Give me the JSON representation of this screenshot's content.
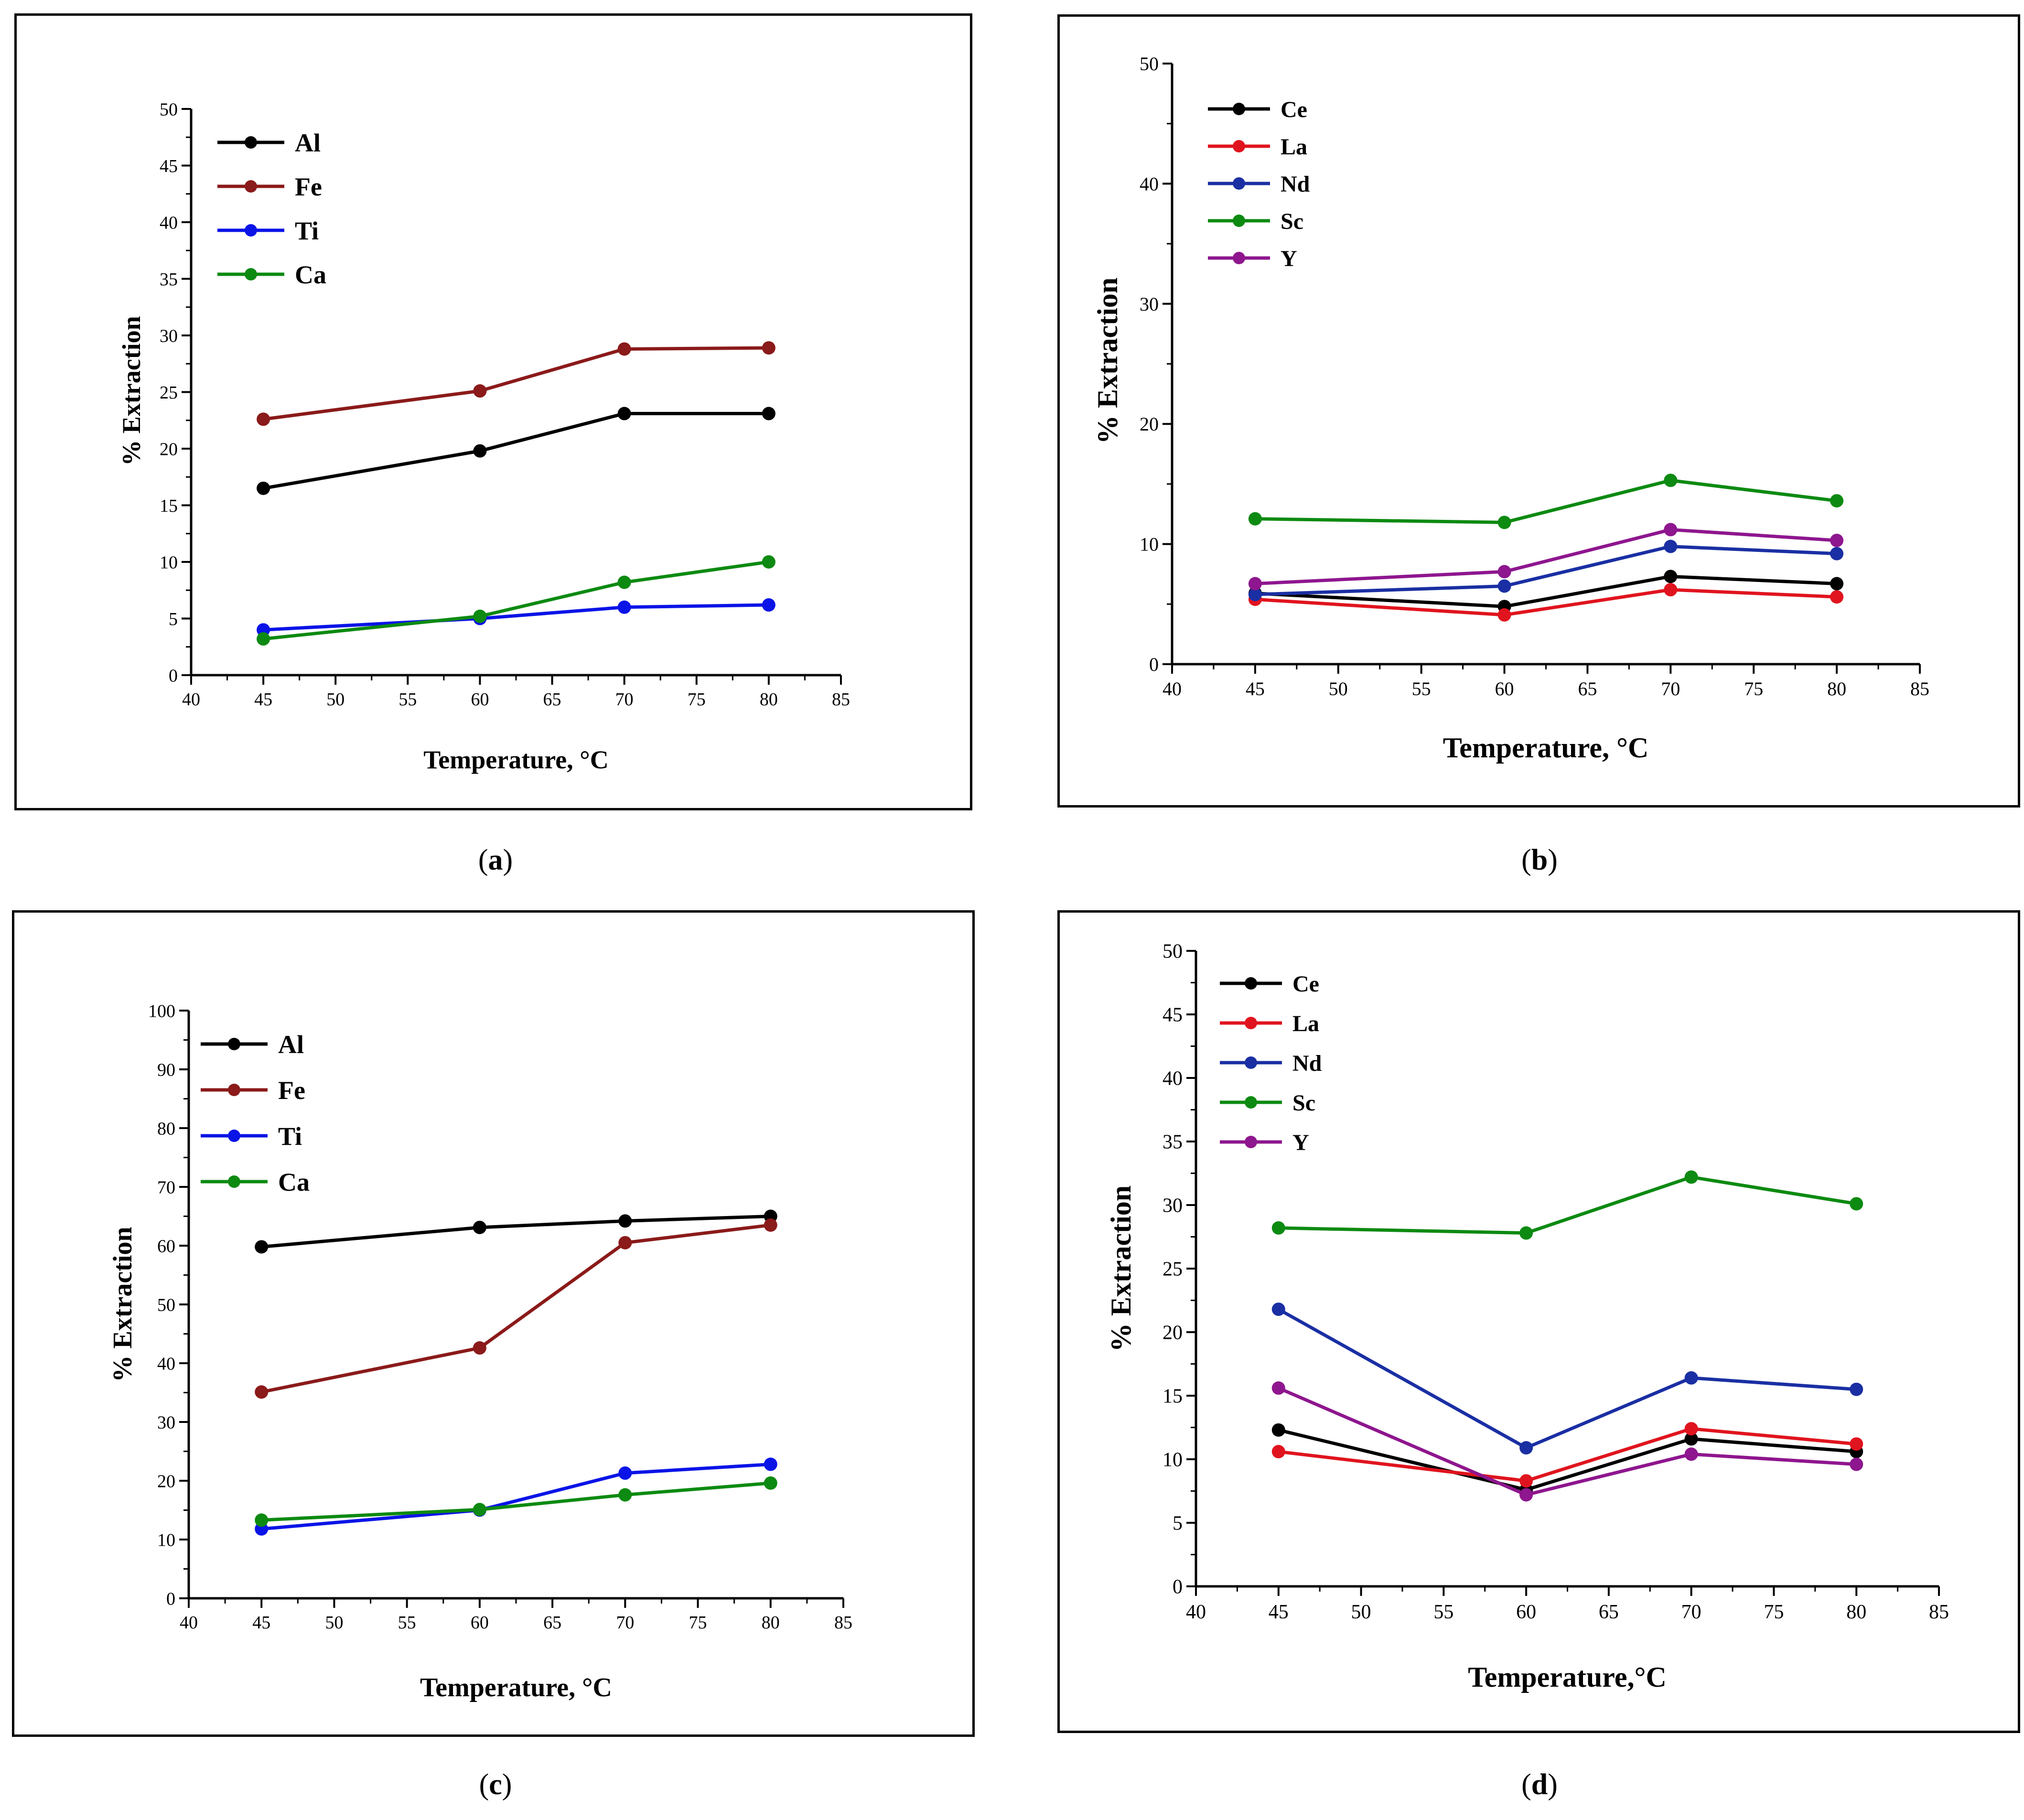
{
  "chart_data": [
    {
      "id": "a",
      "type": "line",
      "caption": "a",
      "xlabel": "Temperature, °C",
      "ylabel": "% Extraction",
      "xlim": [
        40,
        85
      ],
      "ylim": [
        0,
        50
      ],
      "x_ticks": [
        40,
        45,
        50,
        55,
        60,
        65,
        70,
        75,
        80,
        85
      ],
      "y_ticks": [
        0,
        5,
        10,
        15,
        20,
        25,
        30,
        35,
        40,
        45,
        50
      ],
      "x": [
        45,
        60,
        70,
        80
      ],
      "legend_position": "top-left",
      "series": [
        {
          "name": "Al",
          "color": "#000000",
          "values": [
            16.5,
            19.8,
            23.1,
            23.1
          ]
        },
        {
          "name": "Fe",
          "color": "#8b1a1a",
          "values": [
            22.6,
            25.1,
            28.8,
            28.9
          ]
        },
        {
          "name": "Ti",
          "color": "#0a14e6",
          "values": [
            4.0,
            5.0,
            6.0,
            6.2
          ]
        },
        {
          "name": "Ca",
          "color": "#0d8a12",
          "values": [
            3.2,
            5.2,
            8.2,
            10.0
          ]
        }
      ]
    },
    {
      "id": "b",
      "type": "line",
      "caption": "b",
      "xlabel": "Temperature, °C",
      "ylabel": "% Extraction",
      "xlim": [
        40,
        85
      ],
      "ylim": [
        0,
        50
      ],
      "x_ticks": [
        40,
        45,
        50,
        55,
        60,
        65,
        70,
        75,
        80,
        85
      ],
      "y_ticks": [
        0,
        10,
        20,
        30,
        40,
        50
      ],
      "x": [
        45,
        60,
        70,
        80
      ],
      "legend_position": "top-left",
      "series": [
        {
          "name": "Ce",
          "color": "#000000",
          "values": [
            5.9,
            4.8,
            7.3,
            6.7
          ]
        },
        {
          "name": "La",
          "color": "#e0141e",
          "values": [
            5.4,
            4.1,
            6.2,
            5.6
          ]
        },
        {
          "name": "Nd",
          "color": "#1a2fa3",
          "values": [
            5.8,
            6.5,
            9.8,
            9.2
          ]
        },
        {
          "name": "Sc",
          "color": "#0d8a12",
          "values": [
            12.1,
            11.8,
            15.3,
            13.6
          ]
        },
        {
          "name": "Y",
          "color": "#8e168e",
          "values": [
            6.7,
            7.7,
            11.2,
            10.3
          ]
        }
      ]
    },
    {
      "id": "c",
      "type": "line",
      "caption": "c",
      "xlabel": "Temperature, °C",
      "ylabel": "% Extraction",
      "xlim": [
        40,
        85
      ],
      "ylim": [
        0,
        100
      ],
      "x_ticks": [
        40,
        45,
        50,
        55,
        60,
        65,
        70,
        75,
        80,
        85
      ],
      "y_ticks": [
        0,
        10,
        20,
        30,
        40,
        50,
        60,
        70,
        80,
        90,
        100
      ],
      "x": [
        45,
        60,
        70,
        80
      ],
      "legend_position": "top-left",
      "series": [
        {
          "name": "Al",
          "color": "#000000",
          "values": [
            59.8,
            63.1,
            64.2,
            65.0
          ]
        },
        {
          "name": "Fe",
          "color": "#8b1a1a",
          "values": [
            35.1,
            42.6,
            60.5,
            63.5
          ]
        },
        {
          "name": "Ti",
          "color": "#0a14e6",
          "values": [
            11.8,
            15.0,
            21.3,
            22.8
          ]
        },
        {
          "name": "Ca",
          "color": "#0d8a12",
          "values": [
            13.3,
            15.1,
            17.6,
            19.6
          ]
        }
      ]
    },
    {
      "id": "d",
      "type": "line",
      "caption": "d",
      "xlabel": "Temperature,°C",
      "ylabel": "% Extraction",
      "xlim": [
        40,
        85
      ],
      "ylim": [
        0,
        50
      ],
      "x_ticks": [
        40,
        45,
        50,
        55,
        60,
        65,
        70,
        75,
        80,
        85
      ],
      "y_ticks": [
        0,
        5,
        10,
        15,
        20,
        25,
        30,
        35,
        40,
        45,
        50
      ],
      "x": [
        45,
        60,
        70,
        80
      ],
      "legend_position": "top-left",
      "series": [
        {
          "name": "Ce",
          "color": "#000000",
          "values": [
            12.3,
            7.6,
            11.6,
            10.6
          ]
        },
        {
          "name": "La",
          "color": "#e0141e",
          "values": [
            10.6,
            8.3,
            12.4,
            11.2
          ]
        },
        {
          "name": "Nd",
          "color": "#1a2fa3",
          "values": [
            21.8,
            10.9,
            16.4,
            15.5
          ]
        },
        {
          "name": "Sc",
          "color": "#0d8a12",
          "values": [
            28.2,
            27.8,
            32.2,
            30.1
          ]
        },
        {
          "name": "Y",
          "color": "#8e168e",
          "values": [
            15.6,
            7.2,
            10.4,
            9.6
          ]
        }
      ]
    }
  ]
}
